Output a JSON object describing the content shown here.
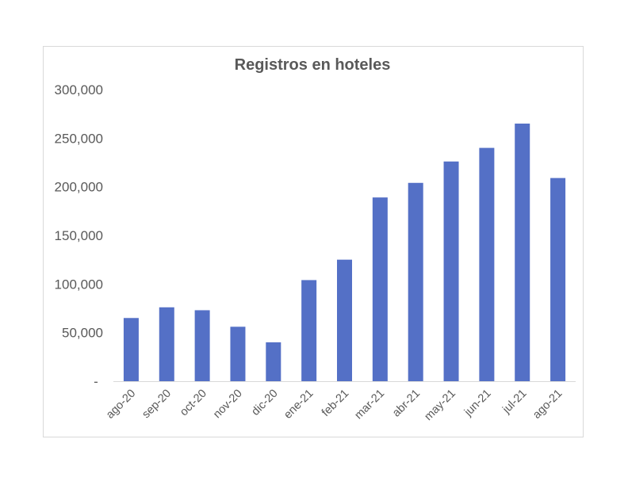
{
  "chart_data": {
    "type": "bar",
    "title": "Registros en hoteles",
    "xlabel": "",
    "ylabel": "",
    "categories": [
      "ago-20",
      "sep-20",
      "oct-20",
      "nov-20",
      "dic-20",
      "ene-21",
      "feb-21",
      "mar-21",
      "abr-21",
      "may-21",
      "jun-21",
      "jul-21",
      "ago-21"
    ],
    "values": [
      65000,
      76000,
      73000,
      56000,
      40000,
      104000,
      125000,
      189000,
      204000,
      226000,
      240000,
      265000,
      209000
    ],
    "ylim": [
      0,
      300000
    ],
    "yticks": [
      0,
      50000,
      100000,
      150000,
      200000,
      250000,
      300000
    ],
    "ytick_labels": [
      "-",
      "50,000",
      "100,000",
      "150,000",
      "200,000",
      "250,000",
      "300,000"
    ],
    "grid": false,
    "legend": "none",
    "bar_color": "#5470C6",
    "axis_color": "#D9D9D9",
    "text_color": "#595959"
  }
}
